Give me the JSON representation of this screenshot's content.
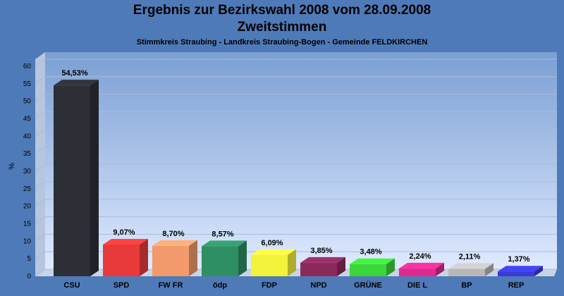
{
  "chart_data": {
    "type": "bar",
    "title": "Ergebnis zur Bezirkswahl 2008 vom 28.09.2008",
    "subtitle": "Zweitstimmen",
    "subtitle2": "Stimmkreis Straubing - Landkreis Straubing-Bogen - Gemeinde FELDKIRCHEN",
    "ylabel": "%",
    "ylim": [
      0,
      60
    ],
    "yticks": [
      0,
      5,
      10,
      15,
      20,
      25,
      30,
      35,
      40,
      45,
      50,
      55,
      60
    ],
    "categories": [
      "CSU",
      "SPD",
      "FW FR",
      "ödp",
      "FDP",
      "NPD",
      "GRÜNE",
      "DIE L",
      "BP",
      "REP"
    ],
    "values": [
      54.53,
      9.07,
      8.7,
      8.57,
      6.09,
      3.85,
      3.48,
      2.24,
      2.11,
      1.37
    ],
    "value_labels": [
      "54,53%",
      "9,07%",
      "8,70%",
      "8,57%",
      "6,09%",
      "3,85%",
      "3,48%",
      "2,24%",
      "2,11%",
      "1,37%"
    ],
    "colors": [
      "#2c2f36",
      "#e83a3a",
      "#f29a6c",
      "#2e8f62",
      "#f2f23a",
      "#8a2a5a",
      "#3ad63a",
      "#e02a8f",
      "#b8b8b8",
      "#3a3ad6"
    ],
    "grid": true
  }
}
